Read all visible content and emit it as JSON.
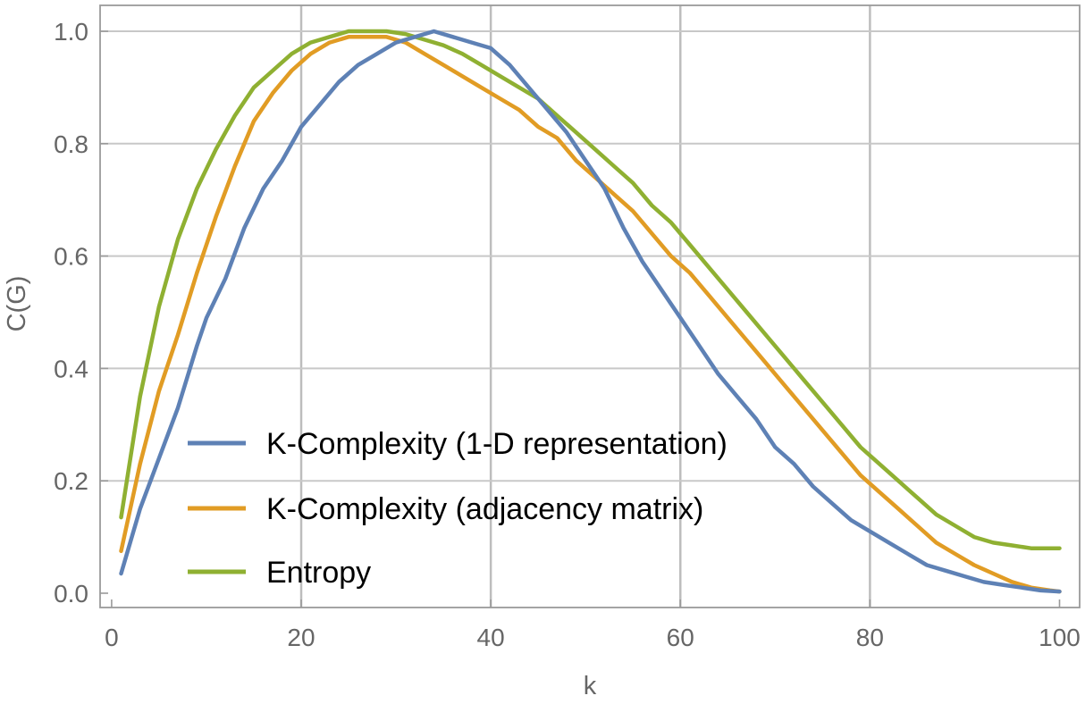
{
  "chart_data": {
    "type": "line",
    "title": "",
    "xlabel": "k",
    "ylabel": "C(G)",
    "xlim": [
      1,
      100
    ],
    "ylim": [
      0,
      1.0
    ],
    "xticks": [
      0,
      20,
      40,
      60,
      80,
      100
    ],
    "xtick_labels": [
      "0",
      "20",
      "40",
      "60",
      "80",
      "100"
    ],
    "yticks": [
      0.0,
      0.2,
      0.4,
      0.6,
      0.8,
      1.0
    ],
    "ytick_labels": [
      "0.0",
      "0.2",
      "0.4",
      "0.6",
      "0.8",
      "1.0"
    ],
    "grid": true,
    "legend_position": "lower-left",
    "series": [
      {
        "name": "K-Complexity (1-D representation)",
        "color": "#5e81b5",
        "x": [
          1,
          3,
          5,
          7,
          9,
          10,
          12,
          14,
          16,
          18,
          20,
          22,
          24,
          26,
          28,
          30,
          32,
          34,
          36,
          38,
          40,
          42,
          44,
          46,
          48,
          50,
          52,
          54,
          56,
          58,
          60,
          62,
          64,
          66,
          68,
          70,
          72,
          74,
          76,
          78,
          80,
          82,
          84,
          86,
          88,
          90,
          92,
          94,
          96,
          98,
          100
        ],
        "y": [
          0.035,
          0.15,
          0.24,
          0.33,
          0.44,
          0.49,
          0.56,
          0.65,
          0.72,
          0.77,
          0.83,
          0.87,
          0.91,
          0.94,
          0.96,
          0.98,
          0.99,
          1.0,
          0.99,
          0.98,
          0.97,
          0.94,
          0.9,
          0.86,
          0.82,
          0.77,
          0.72,
          0.65,
          0.59,
          0.54,
          0.49,
          0.44,
          0.39,
          0.35,
          0.31,
          0.26,
          0.23,
          0.19,
          0.16,
          0.13,
          0.11,
          0.09,
          0.07,
          0.05,
          0.04,
          0.03,
          0.02,
          0.015,
          0.01,
          0.005,
          0.003
        ]
      },
      {
        "name": "K-Complexity (adjacency matrix)",
        "color": "#e19c24",
        "x": [
          1,
          3,
          5,
          7,
          9,
          11,
          13,
          15,
          17,
          19,
          21,
          23,
          25,
          27,
          29,
          31,
          33,
          35,
          37,
          39,
          41,
          43,
          45,
          47,
          49,
          51,
          53,
          55,
          57,
          59,
          61,
          63,
          65,
          67,
          69,
          71,
          73,
          75,
          77,
          79,
          81,
          83,
          85,
          87,
          89,
          91,
          93,
          95,
          97,
          99,
          100
        ],
        "y": [
          0.075,
          0.23,
          0.36,
          0.46,
          0.57,
          0.67,
          0.76,
          0.84,
          0.89,
          0.93,
          0.96,
          0.98,
          0.99,
          0.99,
          0.99,
          0.98,
          0.96,
          0.94,
          0.92,
          0.9,
          0.88,
          0.86,
          0.83,
          0.81,
          0.77,
          0.74,
          0.71,
          0.68,
          0.64,
          0.6,
          0.57,
          0.53,
          0.49,
          0.45,
          0.41,
          0.37,
          0.33,
          0.29,
          0.25,
          0.21,
          0.18,
          0.15,
          0.12,
          0.09,
          0.07,
          0.05,
          0.035,
          0.02,
          0.01,
          0.005,
          0.003
        ]
      },
      {
        "name": "Entropy",
        "color": "#8fb032",
        "x": [
          1,
          3,
          5,
          7,
          9,
          11,
          13,
          15,
          17,
          19,
          21,
          23,
          25,
          27,
          29,
          31,
          33,
          35,
          37,
          39,
          41,
          43,
          45,
          47,
          49,
          51,
          53,
          55,
          57,
          59,
          61,
          63,
          65,
          67,
          69,
          71,
          73,
          75,
          77,
          79,
          81,
          83,
          85,
          87,
          89,
          91,
          93,
          95,
          97,
          99,
          100
        ],
        "y": [
          0.135,
          0.35,
          0.51,
          0.63,
          0.72,
          0.79,
          0.85,
          0.9,
          0.93,
          0.96,
          0.98,
          0.99,
          1.0,
          1.0,
          1.0,
          0.995,
          0.985,
          0.975,
          0.96,
          0.94,
          0.92,
          0.9,
          0.88,
          0.85,
          0.82,
          0.79,
          0.76,
          0.73,
          0.69,
          0.66,
          0.62,
          0.58,
          0.54,
          0.5,
          0.46,
          0.42,
          0.38,
          0.34,
          0.3,
          0.26,
          0.23,
          0.2,
          0.17,
          0.14,
          0.12,
          0.1,
          0.09,
          0.085,
          0.08,
          0.08,
          0.08
        ]
      }
    ]
  }
}
